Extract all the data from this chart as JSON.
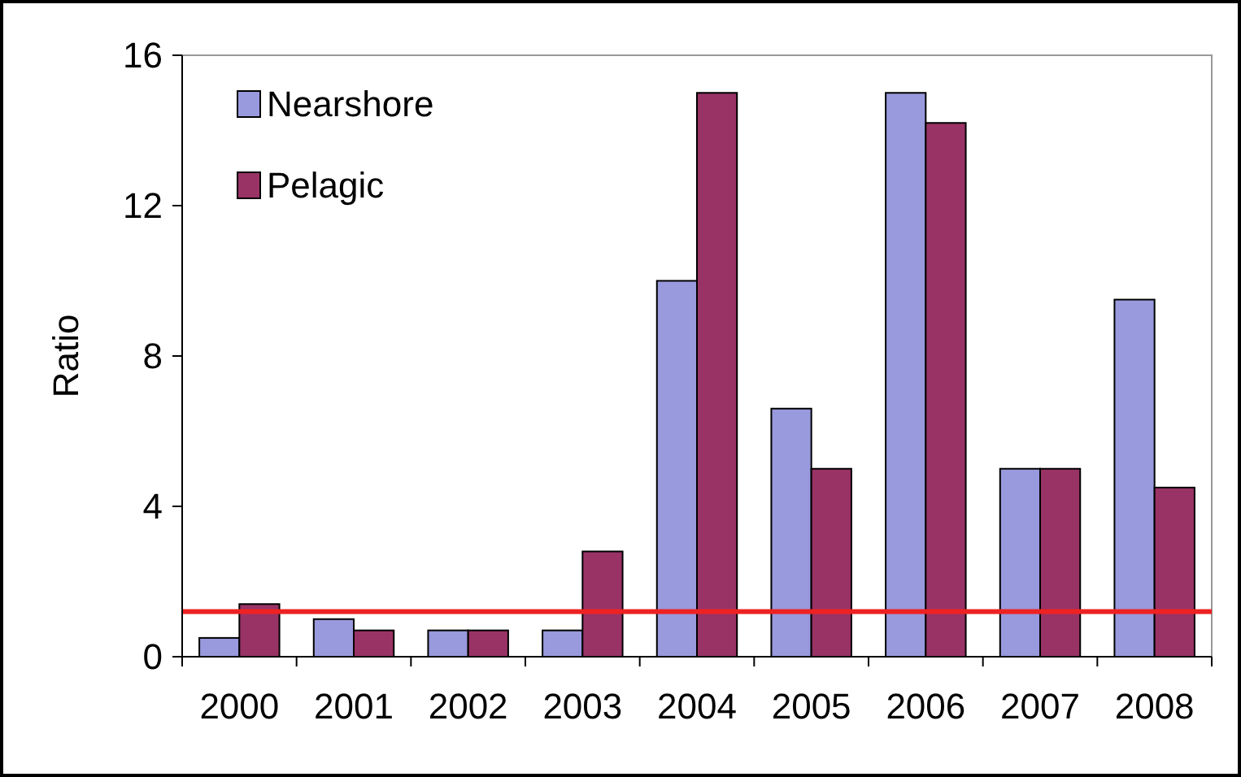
{
  "chart_data": {
    "type": "bar",
    "ylabel": "Ratio",
    "categories": [
      "2000",
      "2001",
      "2002",
      "2003",
      "2004",
      "2005",
      "2006",
      "2007",
      "2008"
    ],
    "series": [
      {
        "name": "Nearshore",
        "color": "#9999dd",
        "values": [
          0.5,
          1.0,
          0.7,
          0.7,
          10.0,
          6.6,
          15.0,
          5.0,
          9.5
        ]
      },
      {
        "name": "Pelagic",
        "color": "#993366",
        "values": [
          1.4,
          0.7,
          0.7,
          2.8,
          15.0,
          5.0,
          14.2,
          5.0,
          4.5
        ]
      }
    ],
    "ylim": [
      0,
      16
    ],
    "yticks": [
      0,
      4,
      8,
      12,
      16
    ],
    "grid": false,
    "legend": "top left",
    "ref_lines": [
      {
        "axis": "y",
        "value": 1.2,
        "color": "#ee2222"
      }
    ]
  }
}
